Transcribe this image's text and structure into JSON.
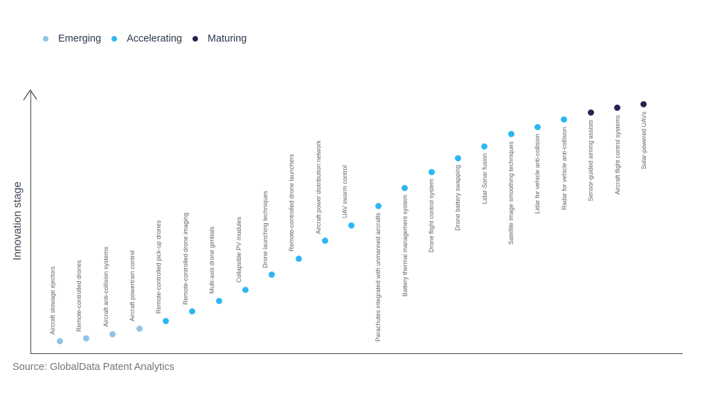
{
  "legend": {
    "items": [
      {
        "label": "Emerging",
        "color": "#92c3e3"
      },
      {
        "label": "Accelerating",
        "color": "#2cb7f2"
      },
      {
        "label": "Maturing",
        "color": "#2a2152"
      }
    ]
  },
  "axis": {
    "ylabel": "Innovation stage"
  },
  "source": {
    "text": "Source: GlobalData Patent Analytics"
  },
  "chart_data": {
    "type": "scatter",
    "title": "",
    "xlabel": "",
    "ylabel": "Innovation stage",
    "ylim": [
      0,
      100
    ],
    "grid": false,
    "legend_position": "top-left",
    "stages": [
      "Emerging",
      "Accelerating",
      "Maturing"
    ],
    "points": [
      {
        "x": 1,
        "y": 4.5,
        "label": "Aircraft stowage ejectors",
        "stage": "Emerging",
        "label_side": "above"
      },
      {
        "x": 2,
        "y": 5.6,
        "label": "Remote-controlled drones",
        "stage": "Emerging",
        "label_side": "above"
      },
      {
        "x": 3,
        "y": 7.4,
        "label": "Aircraft anti-collision systems",
        "stage": "Emerging",
        "label_side": "above"
      },
      {
        "x": 4,
        "y": 9.5,
        "label": "Aircraft powertrain control",
        "stage": "Emerging",
        "label_side": "above"
      },
      {
        "x": 5,
        "y": 12.4,
        "label": "Remote-controlled pick-up drones",
        "stage": "Accelerating",
        "label_side": "above"
      },
      {
        "x": 6,
        "y": 15.9,
        "label": "Remote-controlled drone imaging",
        "stage": "Accelerating",
        "label_side": "above"
      },
      {
        "x": 7,
        "y": 20.1,
        "label": "Multi-axis drone gimbals",
        "stage": "Accelerating",
        "label_side": "above"
      },
      {
        "x": 8,
        "y": 24.3,
        "label": "Collapsible PV modules",
        "stage": "Accelerating",
        "label_side": "above"
      },
      {
        "x": 9,
        "y": 29.9,
        "label": "Drone launching techniques",
        "stage": "Accelerating",
        "label_side": "above"
      },
      {
        "x": 10,
        "y": 36.2,
        "label": "Remote-controlled drone launchers",
        "stage": "Accelerating",
        "label_side": "above"
      },
      {
        "x": 11,
        "y": 42.9,
        "label": "Aircraft power distribution network",
        "stage": "Accelerating",
        "label_side": "above"
      },
      {
        "x": 12,
        "y": 48.9,
        "label": "UAV swarm control",
        "stage": "Accelerating",
        "label_side": "above"
      },
      {
        "x": 13,
        "y": 56.3,
        "label": "Parachutes integrated with unmanned aircrafts",
        "stage": "Accelerating",
        "label_side": "below"
      },
      {
        "x": 14,
        "y": 63.2,
        "label": "Battery thermal management system",
        "stage": "Accelerating",
        "label_side": "below"
      },
      {
        "x": 15,
        "y": 69.3,
        "label": "Drone flight control system",
        "stage": "Accelerating",
        "label_side": "below"
      },
      {
        "x": 16,
        "y": 74.6,
        "label": "Drone battery swapping",
        "stage": "Accelerating",
        "label_side": "below"
      },
      {
        "x": 17,
        "y": 79.1,
        "label": "Lidar-Sonar fusion",
        "stage": "Accelerating",
        "label_side": "below"
      },
      {
        "x": 18,
        "y": 83.6,
        "label": "Satellite image smoothing techniques",
        "stage": "Accelerating",
        "label_side": "below"
      },
      {
        "x": 19,
        "y": 86.5,
        "label": "Lidar for vehicle anti-collision",
        "stage": "Accelerating",
        "label_side": "below"
      },
      {
        "x": 20,
        "y": 89.2,
        "label": "Radar for vehicle anti-collision",
        "stage": "Accelerating",
        "label_side": "below"
      },
      {
        "x": 21,
        "y": 91.8,
        "label": "Sensor-guided aiming assists",
        "stage": "Maturing",
        "label_side": "below"
      },
      {
        "x": 22,
        "y": 93.7,
        "label": "Aircraft flight control systems",
        "stage": "Maturing",
        "label_side": "below"
      },
      {
        "x": 23,
        "y": 95.0,
        "label": "Solar-powered UAVs",
        "stage": "Maturing",
        "label_side": "below"
      }
    ]
  }
}
